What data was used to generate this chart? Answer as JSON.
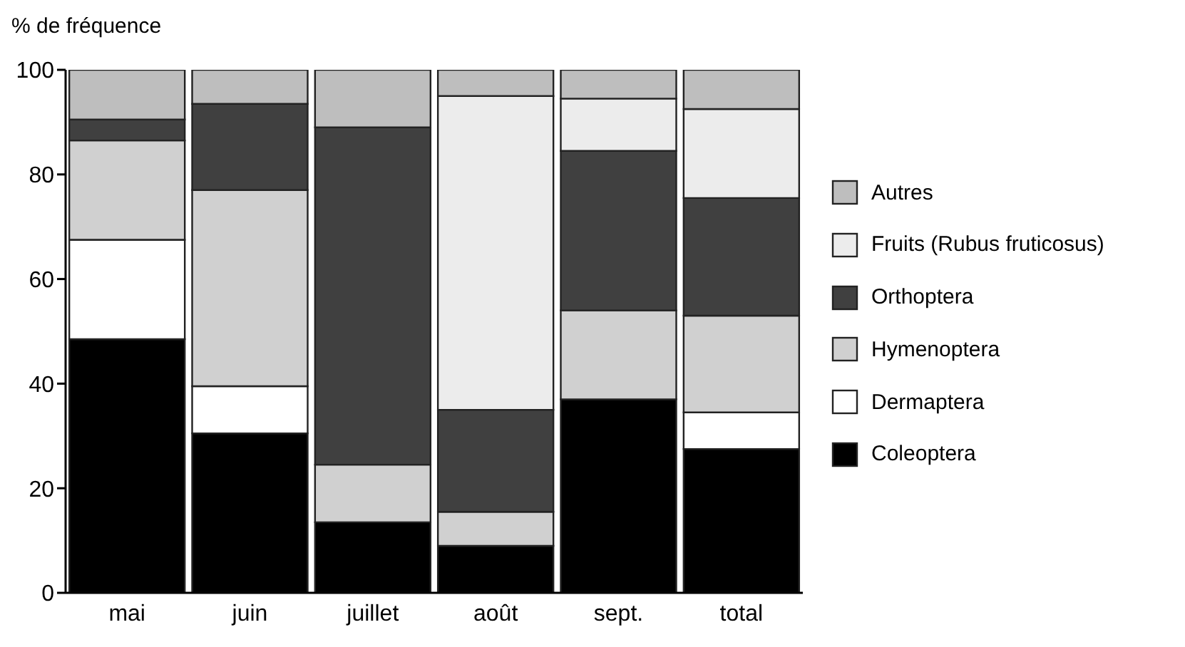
{
  "chart_data": {
    "type": "bar",
    "stacked": true,
    "ylabel": "% de fréquence",
    "categories": [
      "mai",
      "juin",
      "juillet",
      "août",
      "sept.",
      "total"
    ],
    "series": [
      {
        "name": "Coleoptera",
        "color": "#000000",
        "values": [
          48.5,
          30.5,
          13.5,
          9,
          37,
          27.5
        ]
      },
      {
        "name": "Dermaptera",
        "color": "#ffffff",
        "values": [
          19,
          9,
          0,
          0,
          0,
          7
        ]
      },
      {
        "name": "Hymenoptera",
        "color": "#d0d0d0",
        "values": [
          19,
          37.5,
          11,
          6.5,
          17,
          18.5
        ]
      },
      {
        "name": "Orthoptera",
        "color": "#404040",
        "values": [
          4,
          16.5,
          64.5,
          19.5,
          30.5,
          22.5
        ]
      },
      {
        "name": "Fruits (Rubus fruticosus)",
        "color": "#ececec",
        "values": [
          0,
          0,
          0,
          60,
          10,
          17
        ]
      },
      {
        "name": "Autres",
        "color": "#bebebe",
        "values": [
          9.5,
          6.5,
          11,
          5,
          5.5,
          7.5
        ]
      }
    ],
    "ylim": [
      0,
      100
    ],
    "yticks": [
      0,
      20,
      40,
      60,
      80,
      100
    ],
    "grid": false,
    "legend": "right"
  }
}
